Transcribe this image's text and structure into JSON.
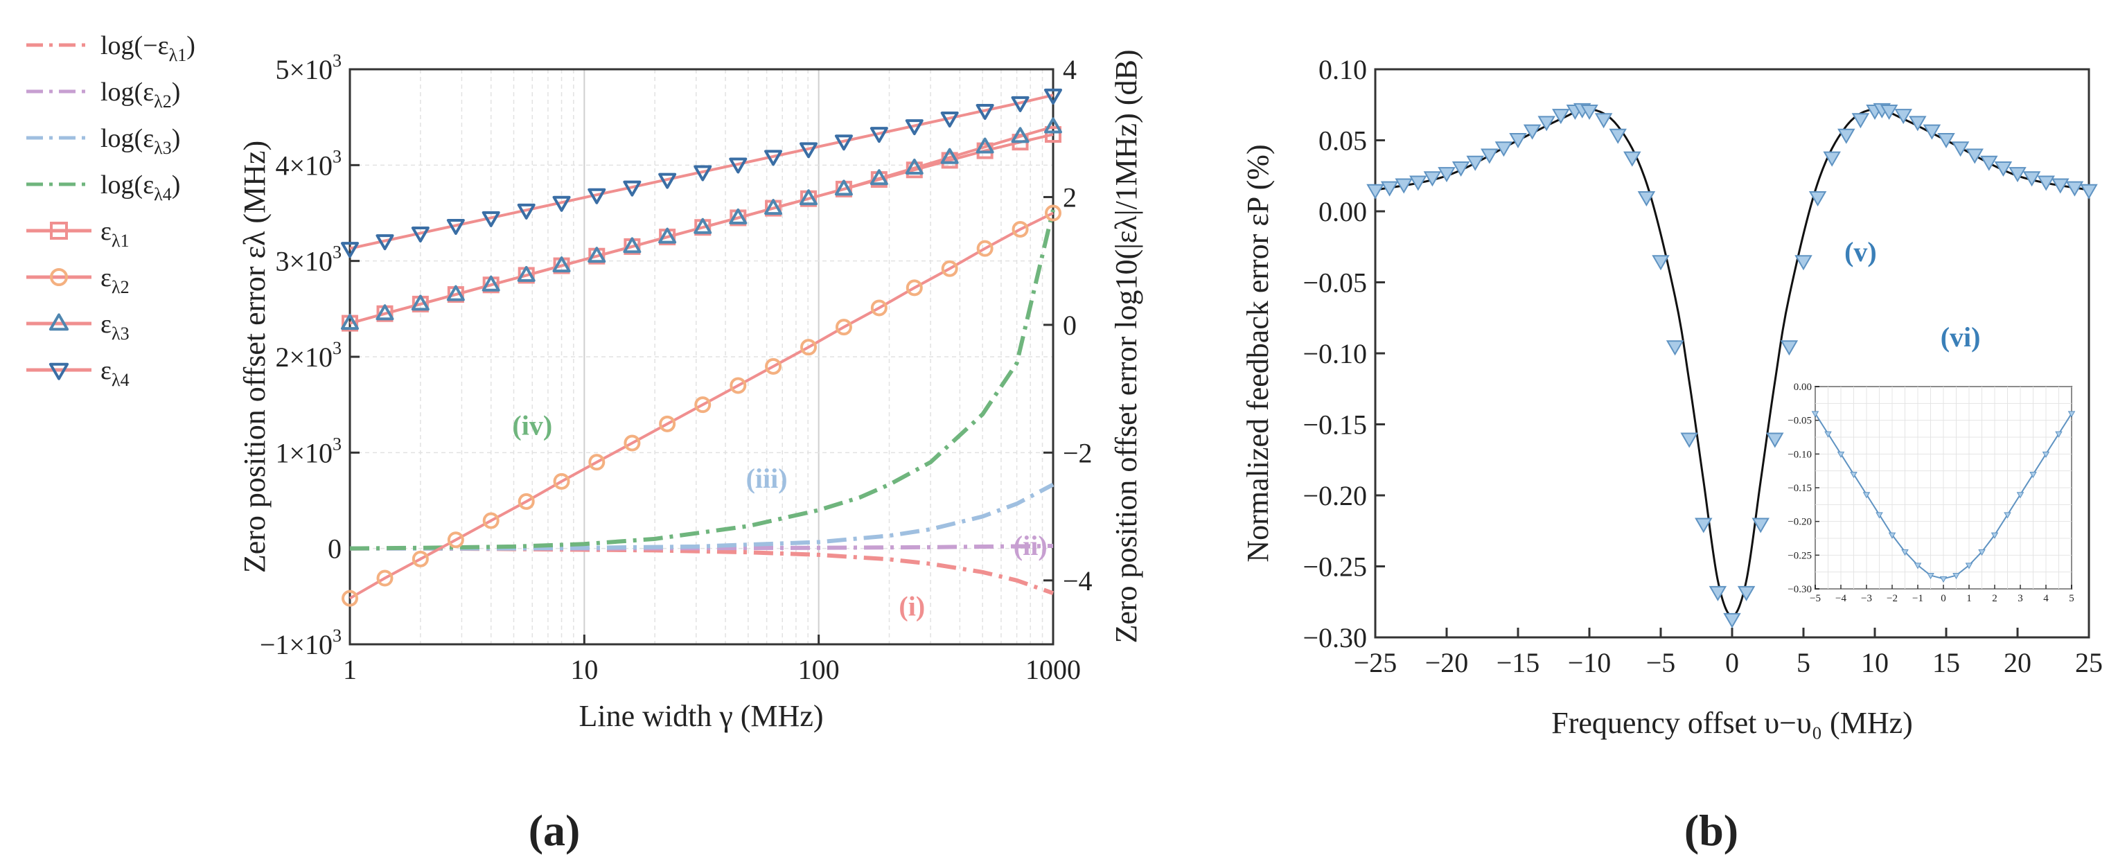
{
  "chart_data": [
    {
      "panel": "a",
      "type": "line",
      "panel_label_open": "(",
      "panel_label_letter": "a",
      "panel_label_close": ")",
      "xscale": "log",
      "xlabel": "Line width γ (MHz)",
      "ylabel_left": "Zero position offset error ελ (MHz)",
      "ylabel_right": "Zero position offset error log10(|ελ|/1MHz) (dB)",
      "xlim": [
        1,
        1000
      ],
      "ylim_left": [
        -1000,
        5000
      ],
      "ylim_right": [
        -5,
        4
      ],
      "x_ticks": [
        1,
        10,
        100,
        1000
      ],
      "x_tick_labels": [
        "1",
        "10",
        "100",
        "1000"
      ],
      "y_left_ticks": [
        -1000,
        0,
        1000,
        2000,
        3000,
        4000,
        5000
      ],
      "y_left_tick_labels": [
        [
          "−1×10",
          "3"
        ],
        [
          "0",
          ""
        ],
        [
          "1×10",
          "3"
        ],
        [
          "2×10",
          "3"
        ],
        [
          "3×10",
          "3"
        ],
        [
          "4×10",
          "3"
        ],
        [
          "5×10",
          "3"
        ]
      ],
      "y_right_ticks": [
        -4,
        -2,
        0,
        2,
        4
      ],
      "y_right_tick_labels": [
        "−4",
        "−2",
        "0",
        "2",
        "4"
      ],
      "grid": true,
      "legend_position": "outside-left",
      "series": [
        {
          "name": "log(−ελ1)",
          "label_main": "log(−ε",
          "label_sub": "λ1",
          "label_tail": ")",
          "axis": "right",
          "style": "dashdot",
          "color": "#f08f8f",
          "x": [
            1,
            2,
            5,
            10,
            20,
            50,
            100,
            200,
            300,
            500,
            700,
            1000
          ],
          "values": [
            -3.5,
            -3.5,
            -3.51,
            -3.52,
            -3.53,
            -3.56,
            -3.6,
            -3.67,
            -3.74,
            -3.87,
            -4.0,
            -4.2
          ]
        },
        {
          "name": "log(ελ2)",
          "label_main": "log(ε",
          "label_sub": "λ2",
          "label_tail": ")",
          "axis": "right",
          "style": "dashdot",
          "color": "#c79fd1",
          "x": [
            1,
            10,
            100,
            300,
            1000
          ],
          "values": [
            -3.5,
            -3.5,
            -3.49,
            -3.48,
            -3.46
          ]
        },
        {
          "name": "log(ελ3)",
          "label_main": "log(ε",
          "label_sub": "λ3",
          "label_tail": ")",
          "axis": "right",
          "style": "dashdot",
          "color": "#9fbfe0",
          "x": [
            1,
            5,
            10,
            30,
            100,
            200,
            300,
            500,
            700,
            1000
          ],
          "values": [
            -3.5,
            -3.5,
            -3.49,
            -3.47,
            -3.4,
            -3.3,
            -3.2,
            -3.0,
            -2.8,
            -2.5
          ]
        },
        {
          "name": "log(ελ4)",
          "label_main": "log(ε",
          "label_sub": "λ4",
          "label_tail": ")",
          "axis": "right",
          "style": "dashdot",
          "color": "#6fb57d",
          "x": [
            1,
            2,
            5,
            10,
            20,
            50,
            100,
            150,
            200,
            300,
            500,
            700,
            1000
          ],
          "values": [
            -3.5,
            -3.49,
            -3.47,
            -3.43,
            -3.35,
            -3.15,
            -2.9,
            -2.7,
            -2.5,
            -2.15,
            -1.4,
            -0.6,
            1.8
          ]
        },
        {
          "name": "ελ1",
          "label_main": "ε",
          "label_sub": "λ1",
          "label_tail": "",
          "axis": "left",
          "style": "solid",
          "color": "#f08f8f",
          "marker": "square",
          "marker_color": "#f08f8f",
          "x": [
            1,
            1.41,
            2,
            2.83,
            4,
            5.66,
            8,
            11.3,
            16,
            22.6,
            32,
            45.3,
            64,
            90.5,
            128,
            181,
            256,
            362,
            512,
            724,
            1000
          ],
          "values": [
            2350,
            2450,
            2550,
            2650,
            2750,
            2850,
            2950,
            3050,
            3150,
            3250,
            3350,
            3450,
            3550,
            3650,
            3750,
            3850,
            3950,
            4050,
            4150,
            4240,
            4320
          ]
        },
        {
          "name": "ελ2",
          "label_main": "ε",
          "label_sub": "λ2",
          "label_tail": "",
          "axis": "left",
          "style": "solid",
          "color": "#f08f8f",
          "marker": "circle",
          "marker_color": "#f4b080",
          "x": [
            1,
            1.41,
            2,
            2.83,
            4,
            5.66,
            8,
            11.3,
            16,
            22.6,
            32,
            45.3,
            64,
            90.5,
            128,
            181,
            256,
            362,
            512,
            724,
            1000
          ],
          "values": [
            -520,
            -310,
            -110,
            90,
            290,
            490,
            700,
            900,
            1100,
            1300,
            1500,
            1700,
            1900,
            2100,
            2310,
            2510,
            2720,
            2920,
            3130,
            3330,
            3500
          ]
        },
        {
          "name": "ελ3",
          "label_main": "ε",
          "label_sub": "λ3",
          "label_tail": "",
          "axis": "left",
          "style": "solid",
          "color": "#f08f8f",
          "marker": "triangle-up",
          "marker_color": "#4f86b0",
          "x": [
            1,
            1.41,
            2,
            2.83,
            4,
            5.66,
            8,
            11.3,
            16,
            22.6,
            32,
            45.3,
            64,
            90.5,
            128,
            181,
            256,
            362,
            512,
            724,
            1000
          ],
          "values": [
            2350,
            2450,
            2550,
            2650,
            2750,
            2850,
            2950,
            3050,
            3150,
            3250,
            3350,
            3450,
            3550,
            3650,
            3750,
            3860,
            3970,
            4080,
            4190,
            4300,
            4400
          ]
        },
        {
          "name": "ελ4",
          "label_main": "ε",
          "label_sub": "λ4",
          "label_tail": "",
          "axis": "left",
          "style": "solid",
          "color": "#f08f8f",
          "marker": "triangle-down",
          "marker_color": "#3a6ea5",
          "x": [
            1,
            1.41,
            2,
            2.83,
            4,
            5.66,
            8,
            11.3,
            16,
            22.6,
            32,
            45.3,
            64,
            90.5,
            128,
            181,
            256,
            362,
            512,
            724,
            1000
          ],
          "values": [
            3130,
            3210,
            3290,
            3370,
            3450,
            3530,
            3610,
            3690,
            3770,
            3850,
            3930,
            4010,
            4090,
            4170,
            4250,
            4330,
            4410,
            4490,
            4570,
            4650,
            4730
          ]
        }
      ],
      "annotations": [
        {
          "text": "(i)",
          "x": 250,
          "y_right": -4.55,
          "color": "#f08f8f"
        },
        {
          "text": "(ii)",
          "x": 800,
          "y_right": -3.6,
          "color": "#c79fd1"
        },
        {
          "text": "(iii)",
          "x": 60,
          "y_right": -2.55,
          "color": "#9fbfe0"
        },
        {
          "text": "(iv)",
          "x": 6,
          "y_right": -1.72,
          "color": "#6fb57d"
        }
      ]
    },
    {
      "panel": "b",
      "type": "line",
      "panel_label_open": "(",
      "panel_label_letter": "b",
      "panel_label_close": ")",
      "xlabel": "Frequency offset υ−υ₀ (MHz)",
      "ylabel": "Normalized feedback error εP (%)",
      "xlim": [
        -25,
        25
      ],
      "ylim": [
        -0.3,
        0.1
      ],
      "x_ticks": [
        -25,
        -20,
        -15,
        -10,
        -5,
        0,
        5,
        10,
        15,
        20,
        25
      ],
      "x_tick_labels": [
        "−25",
        "−20",
        "−15",
        "−10",
        "−5",
        "0",
        "5",
        "10",
        "15",
        "20",
        "25"
      ],
      "y_ticks": [
        -0.3,
        -0.25,
        -0.2,
        -0.15,
        -0.1,
        -0.05,
        0.0,
        0.05,
        0.1
      ],
      "y_tick_labels": [
        "−0.30",
        "−0.25",
        "−0.20",
        "−0.15",
        "−0.10",
        "−0.05",
        "0.00",
        "0.05",
        "0.10"
      ],
      "grid": false,
      "series": [
        {
          "name": "fit",
          "style": "solid",
          "color": "#111111",
          "x": [
            -25,
            -20,
            -15,
            -12,
            -10,
            -8,
            -6,
            -4,
            -3,
            -2,
            -1,
            0,
            1,
            2,
            3,
            4,
            6,
            8,
            10,
            12,
            15,
            20,
            25
          ],
          "values": [
            0.015,
            0.025,
            0.05,
            0.065,
            0.072,
            0.06,
            0.02,
            -0.06,
            -0.12,
            -0.19,
            -0.26,
            -0.285,
            -0.26,
            -0.19,
            -0.12,
            -0.06,
            0.02,
            0.06,
            0.072,
            0.065,
            0.05,
            0.025,
            0.015
          ]
        },
        {
          "name": "data",
          "style": "none",
          "marker": "triangle-down",
          "marker_color": "#7fb0dc",
          "x": [
            -25,
            -24,
            -23,
            -22,
            -21,
            -20,
            -19,
            -18,
            -17,
            -16,
            -15,
            -14,
            -13,
            -12,
            -11,
            -10.5,
            -10,
            -9,
            -8,
            -7,
            -6,
            -5,
            -4,
            -3,
            -2,
            -1,
            0,
            1,
            2,
            3,
            4,
            5,
            6,
            7,
            8,
            9,
            10,
            10.5,
            11,
            12,
            13,
            14,
            15,
            16,
            17,
            18,
            19,
            20,
            21,
            22,
            23,
            24,
            25
          ],
          "values": [
            0.015,
            0.017,
            0.019,
            0.021,
            0.024,
            0.027,
            0.031,
            0.035,
            0.04,
            0.045,
            0.051,
            0.057,
            0.063,
            0.068,
            0.071,
            0.072,
            0.071,
            0.065,
            0.054,
            0.038,
            0.01,
            -0.035,
            -0.095,
            -0.16,
            -0.22,
            -0.268,
            -0.287,
            -0.268,
            -0.22,
            -0.16,
            -0.095,
            -0.035,
            0.01,
            0.038,
            0.054,
            0.065,
            0.071,
            0.072,
            0.071,
            0.068,
            0.063,
            0.057,
            0.051,
            0.045,
            0.04,
            0.035,
            0.031,
            0.027,
            0.024,
            0.021,
            0.019,
            0.017,
            0.015
          ]
        }
      ],
      "annotations": [
        {
          "text": "(v)",
          "x": 9,
          "y": -0.035,
          "color": "#3a7fb8"
        },
        {
          "text": "(vi)",
          "x": 16,
          "y": -0.095,
          "color": "#3a7fb8"
        }
      ],
      "inset": {
        "xlim": [
          -5,
          5
        ],
        "ylim": [
          -0.3,
          0.0
        ],
        "x_ticks": [
          -5,
          -4,
          -3,
          -2,
          -1,
          0,
          1,
          2,
          3,
          4,
          5
        ],
        "x_tick_labels": [
          "−5",
          "−4",
          "−3",
          "−2",
          "−1",
          "0",
          "1",
          "2",
          "3",
          "4",
          "5"
        ],
        "y_ticks": [
          0.0,
          -0.05,
          -0.1,
          -0.15,
          -0.2,
          -0.25,
          -0.3
        ],
        "y_tick_labels": [
          "0.00",
          "−0.05",
          "−0.10",
          "−0.15",
          "−0.20",
          "−0.25",
          "−0.30"
        ],
        "grid": true,
        "series": {
          "name": "inset-data",
          "color": "#7fb0dc",
          "x": [
            -5,
            -4.5,
            -4,
            -3.5,
            -3,
            -2.5,
            -2,
            -1.5,
            -1,
            -0.5,
            0,
            0.5,
            1,
            1.5,
            2,
            2.5,
            3,
            3.5,
            4,
            4.5,
            5
          ],
          "values": [
            -0.04,
            -0.07,
            -0.1,
            -0.13,
            -0.16,
            -0.19,
            -0.22,
            -0.245,
            -0.265,
            -0.28,
            -0.285,
            -0.28,
            -0.265,
            -0.245,
            -0.22,
            -0.19,
            -0.16,
            -0.13,
            -0.1,
            -0.07,
            -0.04
          ]
        }
      }
    }
  ]
}
